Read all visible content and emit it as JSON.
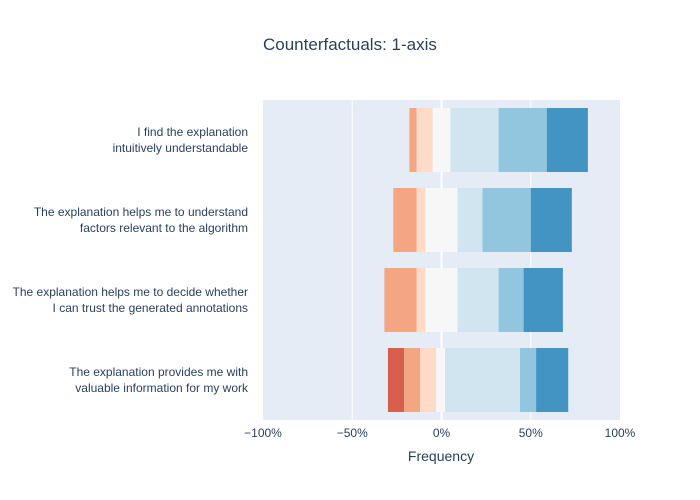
{
  "chart_data": {
    "type": "bar",
    "orientation": "horizontal",
    "stacking": "diverging",
    "title": "Counterfactuals: 1-axis",
    "xlabel": "Frequency",
    "ylabel": "",
    "xlim": [
      -100,
      100
    ],
    "x_ticks": [
      -100,
      -50,
      0,
      50,
      100
    ],
    "x_tick_labels": [
      "−100%",
      "−50%",
      "0%",
      "50%",
      "100%"
    ],
    "grid": true,
    "legend": "none",
    "categories": [
      [
        "I find the explanation",
        "intuitively understandable"
      ],
      [
        "The explanation helps me to understand",
        "factors relevant to the algorithm"
      ],
      [
        "The explanation helps me to decide whether",
        "I can trust the generated annotations"
      ],
      [
        "The explanation provides me with",
        "valuable information for my work"
      ]
    ],
    "levels": [
      {
        "color": "#d6604d"
      },
      {
        "color": "#f4a582"
      },
      {
        "color": "#fddbc7"
      },
      {
        "color": "#f7f7f7"
      },
      {
        "color": "#d1e5f0"
      },
      {
        "color": "#92c5de"
      },
      {
        "color": "#4393c3"
      }
    ],
    "bars": [
      [
        [
          0,
          0
        ],
        [
          -18,
          -14
        ],
        [
          -14,
          -5
        ],
        [
          -5,
          5
        ],
        [
          5,
          32
        ],
        [
          32,
          59
        ],
        [
          59,
          82
        ]
      ],
      [
        [
          0,
          0
        ],
        [
          -27,
          -14
        ],
        [
          -14,
          -9
        ],
        [
          -9,
          9
        ],
        [
          9,
          23
        ],
        [
          23,
          50
        ],
        [
          50,
          73
        ]
      ],
      [
        [
          0,
          0
        ],
        [
          -32,
          -14
        ],
        [
          -14,
          -9
        ],
        [
          -9,
          9
        ],
        [
          9,
          32
        ],
        [
          32,
          46
        ],
        [
          46,
          68
        ]
      ],
      [
        [
          -30,
          -21
        ],
        [
          -21,
          -12
        ],
        [
          -12,
          -3
        ],
        [
          -3,
          2
        ],
        [
          2,
          44
        ],
        [
          44,
          53
        ],
        [
          53,
          71
        ]
      ]
    ]
  }
}
